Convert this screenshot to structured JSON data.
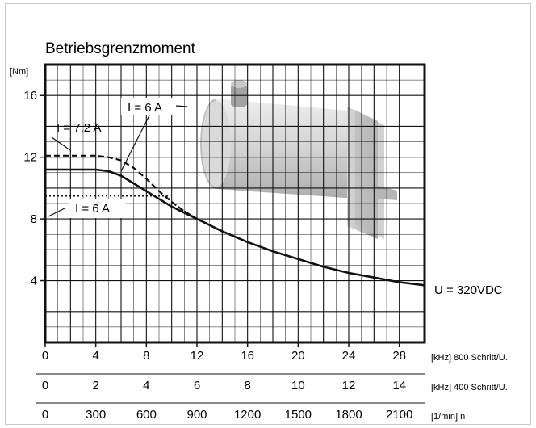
{
  "chart_data": {
    "type": "line",
    "title": "Betriebsgrenzmoment",
    "ylabel": "[Nm]",
    "ylim": [
      0,
      18
    ],
    "yticks": [
      "4",
      "8",
      "12",
      "16"
    ],
    "grid": true,
    "x_axes": [
      {
        "name": "freq800",
        "unit_label": "[kHz] 800 Schritt/U.",
        "range": [
          0,
          30
        ],
        "ticks": [
          "0",
          "4",
          "8",
          "12",
          "16",
          "20",
          "24",
          "28"
        ]
      },
      {
        "name": "freq400",
        "unit_label": "[kHz] 400 Schritt/U.",
        "range": [
          0,
          15
        ],
        "ticks": [
          "0",
          "2",
          "4",
          "6",
          "8",
          "10",
          "12",
          "14"
        ]
      },
      {
        "name": "speed",
        "unit_label": "[1/min] n",
        "range": [
          0,
          2250
        ],
        "ticks": [
          "0",
          "300",
          "600",
          "900",
          "1200",
          "1500",
          "1800",
          "2100"
        ]
      }
    ],
    "series": [
      {
        "name": "U = 320VDC",
        "style": "solid",
        "x": [
          0,
          2,
          4,
          5,
          6,
          7,
          8,
          9,
          10,
          11,
          12,
          14,
          16,
          18,
          20,
          22,
          24,
          26,
          28,
          30
        ],
        "y": [
          11.2,
          11.2,
          11.2,
          11.1,
          10.8,
          10.3,
          9.8,
          9.3,
          8.8,
          8.4,
          8.0,
          7.2,
          6.5,
          5.9,
          5.4,
          4.9,
          4.5,
          4.2,
          3.9,
          3.7
        ]
      },
      {
        "name": "I = 7,2 A",
        "style": "dashed",
        "x": [
          0,
          2,
          4,
          5,
          6,
          7,
          8,
          9,
          10,
          11,
          12
        ],
        "y": [
          12.1,
          12.1,
          12.1,
          12.0,
          11.8,
          11.3,
          10.6,
          9.8,
          9.1,
          8.5,
          8.0
        ]
      },
      {
        "name": "I = 6 A",
        "style": "dotted",
        "x": [
          0,
          2,
          4,
          6,
          8,
          9.6,
          10,
          11,
          12
        ],
        "y": [
          9.5,
          9.5,
          9.5,
          9.5,
          9.5,
          9.5,
          9.1,
          8.5,
          8.0
        ]
      }
    ],
    "annotations": {
      "dashed_label": "I = 7,2 A",
      "mid_label": "I = 6 A",
      "dotted_label": "I = 6 A",
      "voltage_label": "U = 320VDC"
    }
  },
  "image": {
    "label": "motor-photo",
    "icon": "stepper-motor-illustration"
  },
  "colors": {
    "line": "#111111",
    "grid": "#111111",
    "motor_light": "#e4e4e4",
    "motor_mid": "#c4c4c4",
    "motor_dark": "#9a9a9a"
  }
}
